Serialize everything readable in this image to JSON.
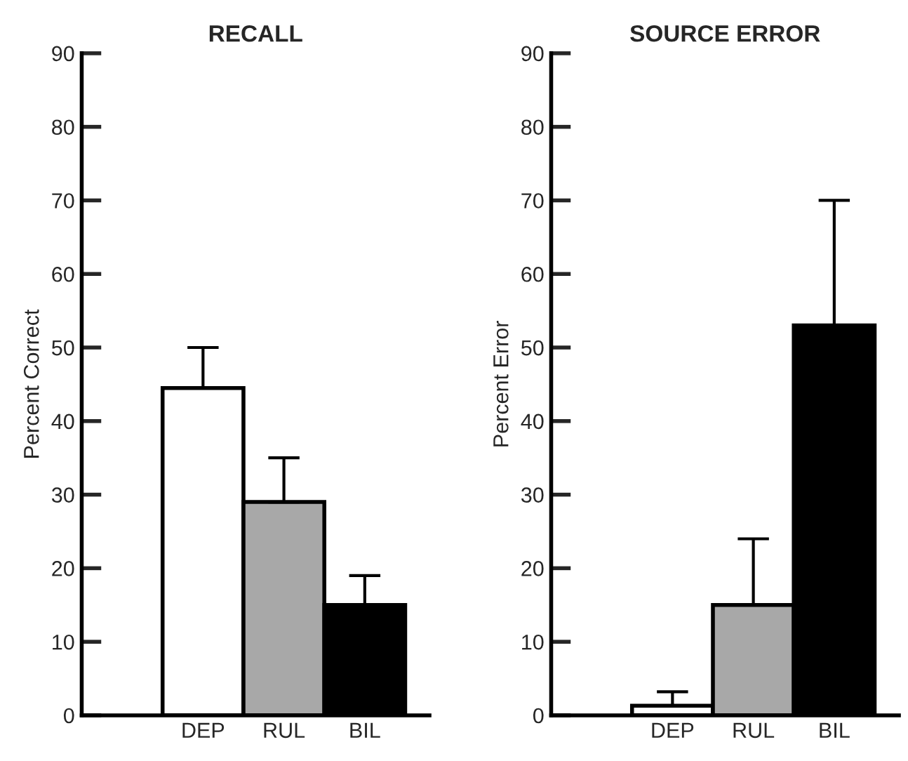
{
  "chart_data": [
    {
      "type": "bar",
      "title": "RECALL",
      "ylabel": "Percent Correct",
      "categories": [
        "DEP",
        "RUL",
        "BIL"
      ],
      "values": [
        44.5,
        29,
        15
      ],
      "colors": [
        "#ffffff",
        "#a8a8a8",
        "#000000"
      ],
      "errors": [
        [
          44.5,
          50
        ],
        [
          29,
          35
        ],
        [
          15,
          19
        ]
      ],
      "ylim": [
        0,
        90
      ],
      "yticks": [
        0,
        10,
        20,
        30,
        40,
        50,
        60,
        70,
        80,
        90
      ],
      "grid": false,
      "legend": false
    },
    {
      "type": "bar",
      "title": "SOURCE ERROR",
      "ylabel": "Percent Error",
      "categories": [
        "DEP",
        "RUL",
        "BIL"
      ],
      "values": [
        1.3,
        15,
        53
      ],
      "colors": [
        "#ffffff",
        "#a8a8a8",
        "#000000"
      ],
      "errors": [
        [
          1.3,
          3.2
        ],
        [
          15,
          24
        ],
        [
          53,
          70
        ]
      ],
      "ylim": [
        0,
        90
      ],
      "yticks": [
        0,
        10,
        20,
        30,
        40,
        50,
        60,
        70,
        80,
        90
      ],
      "grid": false,
      "legend": false
    }
  ]
}
